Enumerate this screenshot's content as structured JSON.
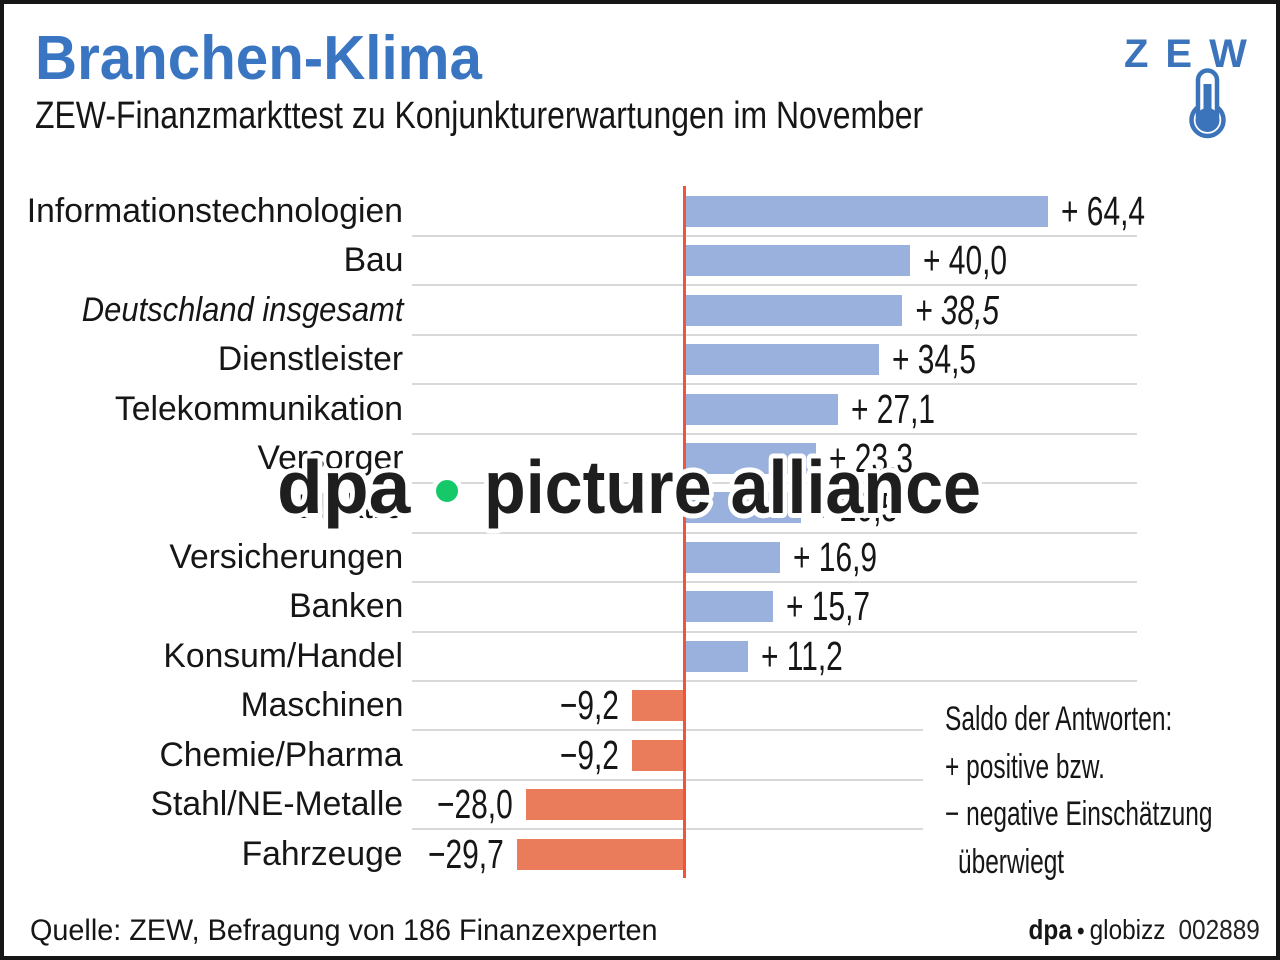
{
  "header": {
    "title": "Branchen-Klima",
    "subtitle": "ZEW-Finanzmarkttest zu Konjunkturerwartungen im November",
    "title_color": "#3a75c2"
  },
  "zew_logo": {
    "wordmark": "ZEW",
    "color": "#3b74ba",
    "icon": "thermometer-icon"
  },
  "chart_data": {
    "type": "bar",
    "orientation": "horizontal",
    "title": "Branchen-Klima",
    "subtitle": "ZEW-Finanzmarkttest zu Konjunkturerwartungen im November",
    "categories": [
      "Informationstechnologien",
      "Bau",
      "Deutschland insgesamt",
      "Dienstleister",
      "Telekommunikation",
      "Versorger",
      "Elektro",
      "Versicherungen",
      "Banken",
      "Konsum/Handel",
      "Maschinen",
      "Chemie/Pharma",
      "Stahl/NE-Metalle",
      "Fahrzeuge"
    ],
    "values": [
      64.4,
      40.0,
      38.5,
      34.5,
      27.1,
      23.3,
      20.5,
      16.9,
      15.7,
      11.2,
      -9.2,
      -9.2,
      -28.0,
      -29.7
    ],
    "value_labels": [
      "+ 64,4",
      "+ 40,0",
      "+ 38,5",
      "+ 34,5",
      "+ 27,1",
      "+ 23,3",
      "+ 20,5",
      "+ 16,9",
      "+ 15,7",
      "+ 11,2",
      "−9,2",
      "−9,2",
      "−28,0",
      "−29,7"
    ],
    "italic_rows": [
      2
    ],
    "xlim": [
      -35,
      70
    ],
    "positive_color": "#9ab1de",
    "negative_color": "#ea7c5b",
    "zero_line_color": "#f0543b",
    "grid_color": "#d9d9d9",
    "legend_note_lines": [
      "Saldo der Antworten:",
      "+ positive bzw.",
      "− negative Einschätzung",
      "überwiegt"
    ]
  },
  "watermark": {
    "text_left": "dpa",
    "text_right": "picture alliance",
    "dot_color": "#15c969",
    "text_color": "#1e1e1e"
  },
  "footer": {
    "source": "Quelle: ZEW, Befragung von 186 Finanzexperten",
    "agency_bold": "dpa",
    "agency_separator": "•",
    "agency_name": "globizz",
    "graphic_number": "002889"
  }
}
